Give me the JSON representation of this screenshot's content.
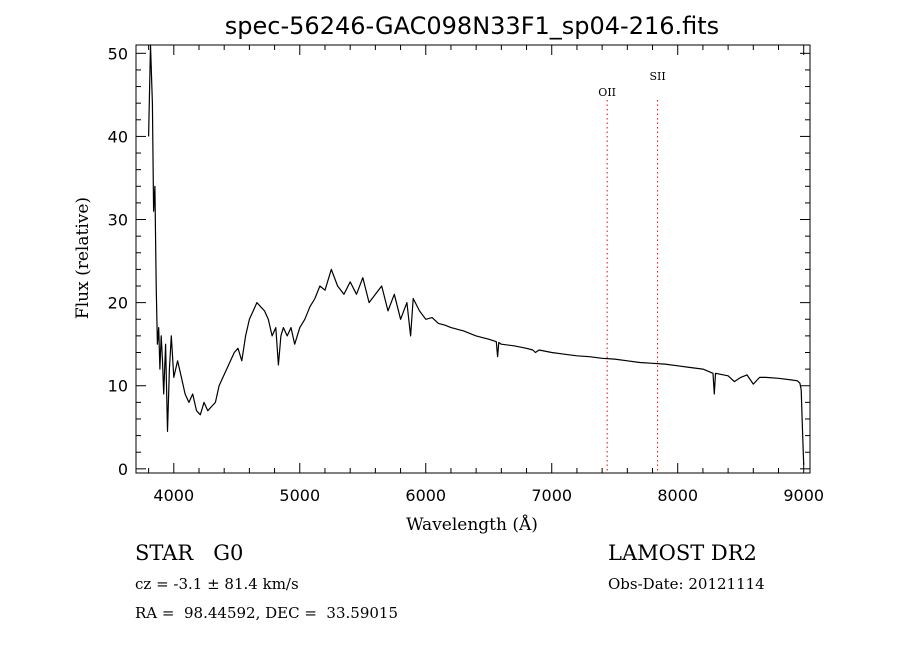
{
  "chart_data": {
    "type": "line",
    "title": "spec-56246-GAC098N33F1_sp04-216.fits",
    "xlabel": "Wavelength (Å)",
    "ylabel": "Flux (relative)",
    "xlim": [
      3700,
      9050
    ],
    "ylim": [
      -0.5,
      51
    ],
    "xticks": [
      4000,
      5000,
      6000,
      7000,
      8000,
      9000
    ],
    "yticks": [
      0,
      10,
      20,
      30,
      40,
      50
    ],
    "grid": false,
    "line_color": "#000000",
    "marker_color": "#ff0000",
    "markers": [
      {
        "label": "OII",
        "x": 7440
      },
      {
        "label": "SII",
        "x": 7840
      }
    ],
    "series": [
      {
        "x": [
          3800,
          3815,
          3830,
          3840,
          3850,
          3860,
          3870,
          3880,
          3890,
          3900,
          3910,
          3920,
          3935,
          3950,
          3965,
          3980,
          4000,
          4030,
          4060,
          4090,
          4120,
          4150,
          4180,
          4210,
          4240,
          4270,
          4300,
          4330,
          4360,
          4390,
          4420,
          4450,
          4480,
          4510,
          4540,
          4570,
          4600,
          4630,
          4660,
          4690,
          4720,
          4750,
          4780,
          4810,
          4830,
          4850,
          4870,
          4900,
          4930,
          4960,
          5000,
          5040,
          5080,
          5120,
          5160,
          5200,
          5250,
          5300,
          5350,
          5400,
          5450,
          5500,
          5550,
          5600,
          5650,
          5700,
          5750,
          5800,
          5850,
          5880,
          5900,
          5950,
          6000,
          6050,
          6100,
          6150,
          6200,
          6300,
          6400,
          6500,
          6560,
          6570,
          6580,
          6600,
          6700,
          6800,
          6850,
          6870,
          6900,
          7000,
          7100,
          7200,
          7300,
          7400,
          7500,
          7600,
          7700,
          7800,
          7900,
          8000,
          8100,
          8200,
          8280,
          8290,
          8300,
          8400,
          8450,
          8500,
          8550,
          8600,
          8650,
          8700,
          8800,
          8900,
          8950,
          8970,
          8980,
          8990,
          9000
        ],
        "values": [
          40,
          51,
          44,
          31,
          34,
          22,
          15,
          17,
          12,
          16,
          13,
          9,
          15,
          4.5,
          12,
          16,
          11,
          13,
          11,
          9,
          8,
          9,
          7,
          6.5,
          8,
          7,
          7.5,
          8,
          10,
          11,
          12,
          13,
          14,
          14.5,
          13,
          16,
          18,
          19,
          20,
          19.5,
          19,
          18,
          16,
          17,
          12.5,
          16,
          17,
          16,
          17,
          15,
          17,
          18,
          19.5,
          20.5,
          22,
          21.5,
          24,
          22,
          21,
          22.5,
          21,
          23,
          20,
          21,
          22,
          19,
          21,
          18,
          20,
          16,
          20.5,
          19,
          18,
          18.2,
          17.5,
          17.3,
          17,
          16.6,
          16,
          15.6,
          15.3,
          13.5,
          15.2,
          15,
          14.8,
          14.5,
          14.3,
          14,
          14.3,
          14,
          13.8,
          13.6,
          13.5,
          13.3,
          13.2,
          13,
          12.8,
          12.7,
          12.6,
          12.4,
          12.2,
          12,
          11.5,
          9,
          11.5,
          11.2,
          10.5,
          11,
          11.3,
          10.2,
          11,
          11,
          10.9,
          10.7,
          10.6,
          10.3,
          9.5,
          5,
          0.5
        ]
      }
    ]
  },
  "info": {
    "object_line": "STAR   G0",
    "survey": "LAMOST DR2",
    "velocity": "cz = -3.1 ± 81.4 km/s",
    "obs_date": "Obs-Date: 20121114",
    "coords": "RA =  98.44592, DEC =  33.59015"
  }
}
